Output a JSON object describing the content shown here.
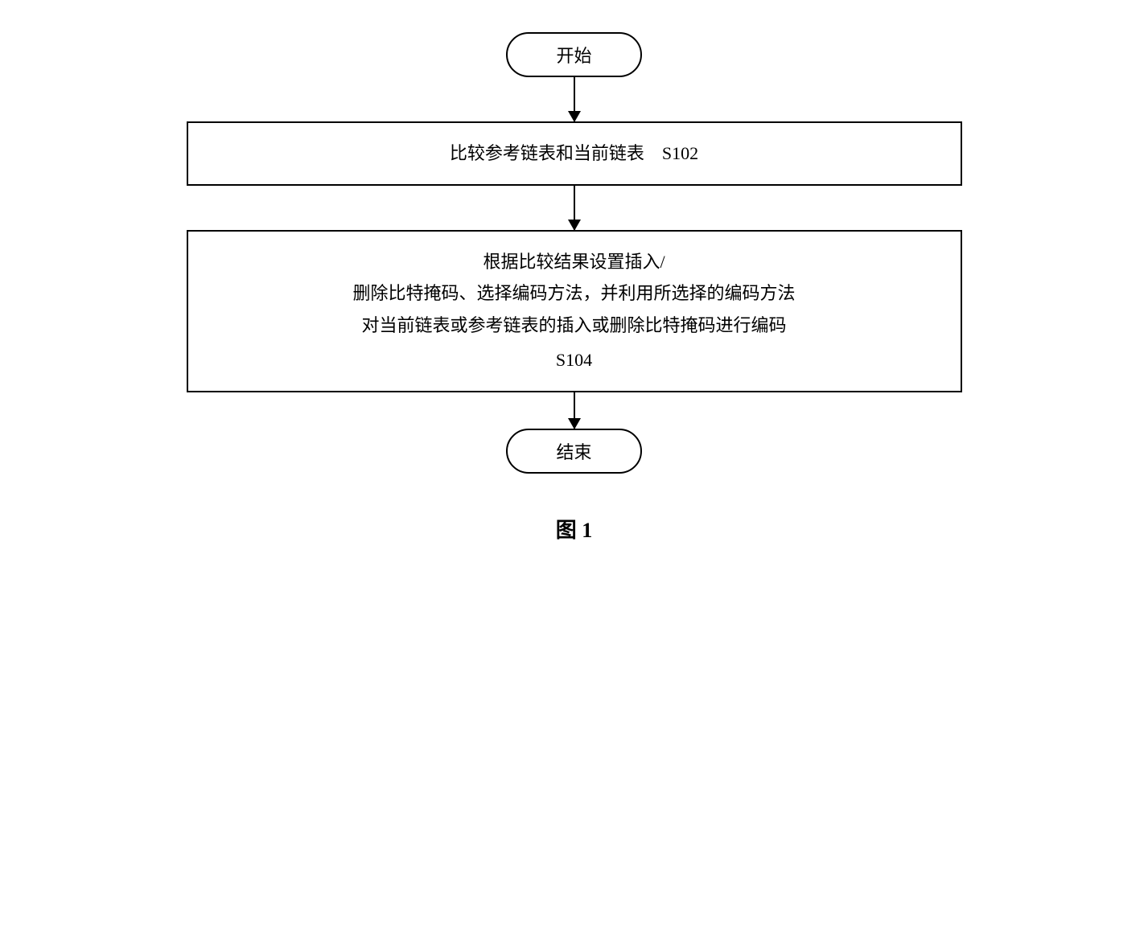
{
  "flowchart": {
    "start_label": "开始",
    "end_label": "结束",
    "step1": {
      "text": "比较参考链表和当前链表",
      "id": "S102"
    },
    "step2": {
      "line1": "根据比较结果设置插入/",
      "line2": "删除比特掩码、选择编码方法，并利用所选择的编码方法",
      "line3": "对当前链表或参考链表的插入或删除比特掩码进行编码",
      "id": "S104"
    },
    "figure_label": "图 1"
  },
  "style": {
    "border_color": "#000000",
    "background_color": "#ffffff",
    "text_color": "#000000",
    "font_family": "SimSun",
    "terminal_fontsize": 22,
    "process_fontsize": 22,
    "figure_fontsize": 26,
    "border_width": 2,
    "terminal_radius": 50,
    "process_width": 900,
    "arrow_head_size": 14
  }
}
